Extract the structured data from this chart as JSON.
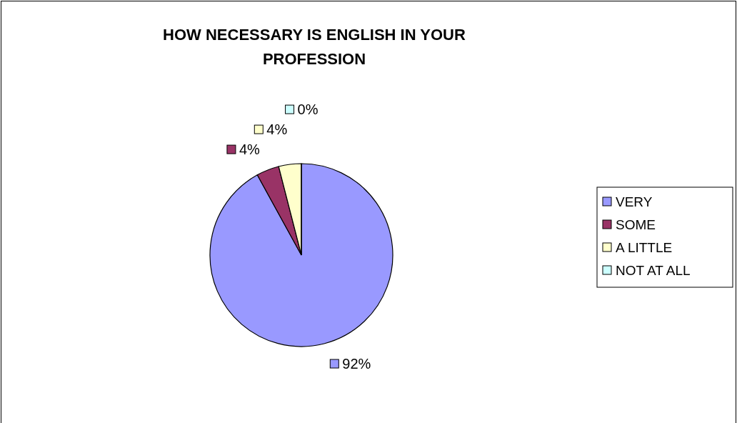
{
  "chart_data": {
    "type": "pie",
    "title": "HOW NECESSARY IS ENGLISH IN YOUR PROFESSION",
    "categories": [
      "VERY",
      "SOME",
      "A LITTLE",
      "NOT AT ALL"
    ],
    "values": [
      92,
      4,
      4,
      0
    ],
    "colors": [
      "#9999ff",
      "#993366",
      "#ffffcc",
      "#ccffff"
    ],
    "value_labels": [
      "92%",
      "4%",
      "4%",
      "0%"
    ],
    "legend": "right"
  }
}
